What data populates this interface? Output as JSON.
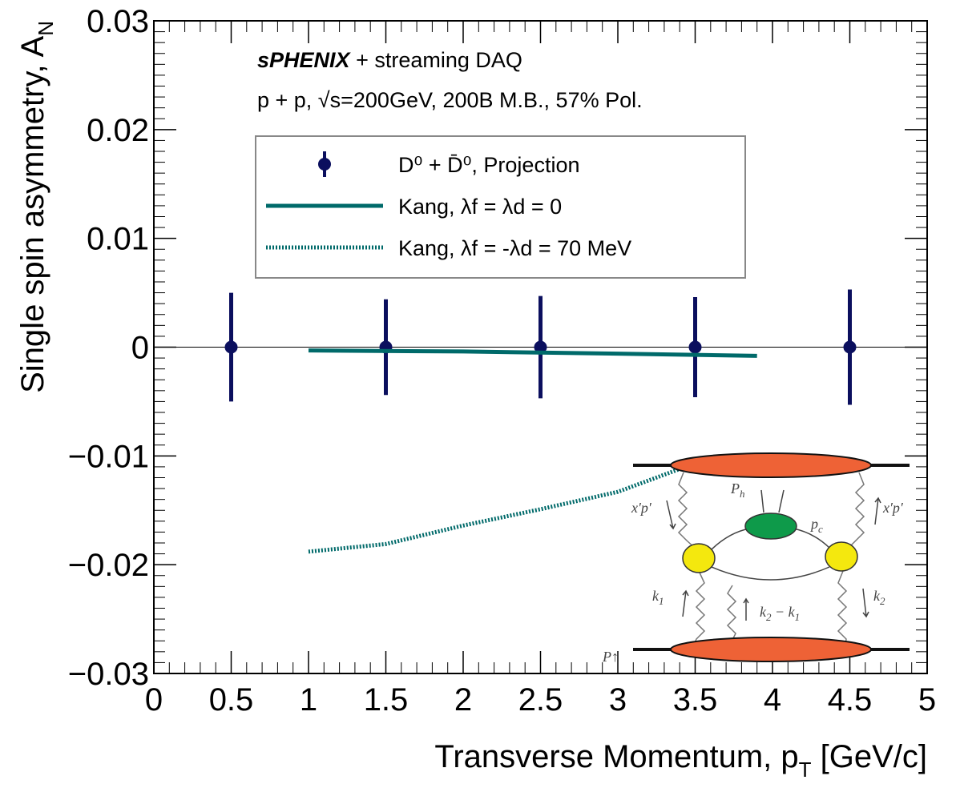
{
  "chart_data": {
    "type": "errorbar-line",
    "annotations": [
      "sPHENIX",
      "+ streaming DAQ",
      "p + p, √s=200GeV, 200B M.B., 57% Pol."
    ],
    "xlabel": "Transverse Momentum, p",
    "xlabel_sub": "T",
    "xlabel_end": " [GeV/c]",
    "ylabel": "Single spin asymmetry, A",
    "ylabel_sub": "N",
    "xlim": [
      0,
      5
    ],
    "xticks": [
      0,
      0.5,
      1,
      1.5,
      2,
      2.5,
      3,
      3.5,
      4,
      4.5,
      5
    ],
    "ylim": [
      -0.03,
      0.03
    ],
    "yticks": [
      {
        "value": -0.03,
        "label": "−0.03"
      },
      {
        "value": -0.02,
        "label": "−0.02"
      },
      {
        "value": -0.01,
        "label": "−0.01"
      },
      0,
      0.01,
      0.02,
      0.03
    ],
    "hlines": [
      0
    ],
    "series": [
      {
        "name": "D⁰ + D̄⁰, Projection",
        "style": "points",
        "color": "#0b0f5e",
        "x": [
          0.5,
          1.5,
          2.5,
          3.5,
          4.5
        ],
        "values": [
          0,
          0,
          0,
          0,
          0
        ],
        "errors": [
          0.005,
          0.0044,
          0.0047,
          0.0046,
          0.0053
        ]
      },
      {
        "name": "Kang, λf = λd = 0",
        "style": "solid",
        "color": "#006a6a",
        "x": [
          1,
          2,
          3,
          3.9
        ],
        "values": [
          -0.0003,
          -0.0004,
          -0.0006,
          -0.0008
        ]
      },
      {
        "name": "Kang, λf = -λd = 70 MeV",
        "style": "dotted",
        "color": "#006a6a",
        "x": [
          1,
          1.5,
          2,
          2.5,
          3,
          3.4
        ],
        "values": [
          -0.0188,
          -0.0181,
          -0.0164,
          -0.0149,
          -0.0133,
          -0.0112
        ]
      }
    ],
    "inset_labels": [
      "x′p′",
      "P",
      "h",
      "p",
      "c",
      "x′p′",
      "k",
      "1",
      "k",
      "2",
      " − k",
      "1",
      "k",
      "2",
      "P↑"
    ]
  }
}
